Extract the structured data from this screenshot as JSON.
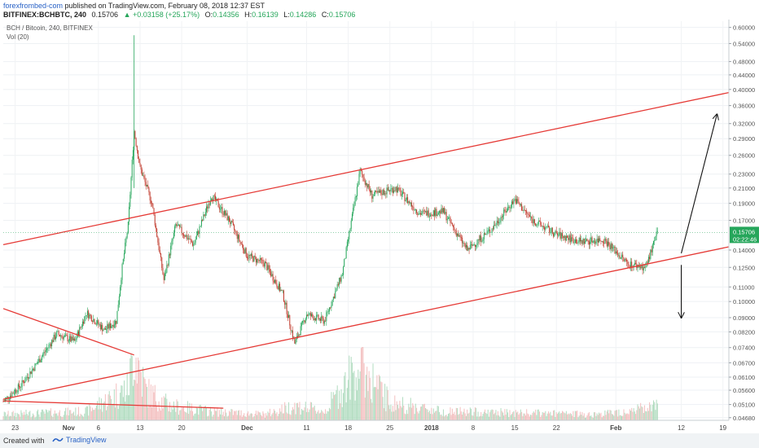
{
  "header": {
    "author": "forexfrombed-com",
    "published": "published on TradingView.com, February 08, 2018 12:37 EST",
    "symbol": "BITFINEX:BCHBTC, 240",
    "last": "0.15706",
    "change": "▲ +0.03158 (+25.17%)",
    "o_label": "O:",
    "o_value": "0.14356",
    "h_label": "H:",
    "h_value": "0.16139",
    "l_label": "L:",
    "l_value": "0.14286",
    "c_label": "C:",
    "c_value": "0.15706"
  },
  "chart_data": {
    "type": "candlestick",
    "legend": [
      "BCH / Bitcoin, 240, BITFINEX",
      "Vol (20)"
    ],
    "y_scale": "log",
    "ylim": [
      0.046,
      0.625
    ],
    "y_ticks": [
      "0.60000",
      "0.54000",
      "0.48000",
      "0.44000",
      "0.40000",
      "0.36000",
      "0.32000",
      "0.29000",
      "0.26000",
      "0.23000",
      "0.21000",
      "0.19000",
      "0.17000",
      "0.14000",
      "0.12500",
      "0.11000",
      "0.10000",
      "0.09000",
      "0.08200",
      "0.07400",
      "0.06700",
      "0.06100",
      "0.05600",
      "0.05100",
      "0.04680"
    ],
    "x_ticks": [
      "23",
      "Nov",
      "6",
      "13",
      "20",
      "Dec",
      "11",
      "18",
      "25",
      "2018",
      "8",
      "15",
      "22",
      "Feb",
      "12",
      "19"
    ],
    "current_price": "0.15706",
    "countdown": "02:22:46",
    "price_path": [
      [
        "Oct 21",
        0.052
      ],
      [
        "Oct 24",
        0.058
      ],
      [
        "Oct 27",
        0.068
      ],
      [
        "Oct 30",
        0.081
      ],
      [
        "Nov 2",
        0.077
      ],
      [
        "Nov 4",
        0.093
      ],
      [
        "Nov 7",
        0.083
      ],
      [
        "Nov 9",
        0.088
      ],
      [
        "Nov 10",
        0.125
      ],
      [
        "Nov 11",
        0.165
      ],
      [
        "Nov 12",
        0.305
      ],
      [
        "Nov 13",
        0.24
      ],
      [
        "Nov 15",
        0.19
      ],
      [
        "Nov 17",
        0.115
      ],
      [
        "Nov 19",
        0.165
      ],
      [
        "Nov 22",
        0.145
      ],
      [
        "Nov 25",
        0.2
      ],
      [
        "Nov 28",
        0.17
      ],
      [
        "Dec 1",
        0.135
      ],
      [
        "Dec 4",
        0.128
      ],
      [
        "Dec 7",
        0.105
      ],
      [
        "Dec 9",
        0.076
      ],
      [
        "Dec 11",
        0.092
      ],
      [
        "Dec 14",
        0.088
      ],
      [
        "Dec 17",
        0.12
      ],
      [
        "Dec 20",
        0.235
      ],
      [
        "Dec 22",
        0.2
      ],
      [
        "Dec 26",
        0.21
      ],
      [
        "Dec 30",
        0.178
      ],
      [
        "Jan 3",
        0.18
      ],
      [
        "Jan 7",
        0.14
      ],
      [
        "Jan 11",
        0.16
      ],
      [
        "Jan 15",
        0.195
      ],
      [
        "Jan 18",
        0.17
      ],
      [
        "Jan 22",
        0.155
      ],
      [
        "Jan 26",
        0.148
      ],
      [
        "Jan 30",
        0.15
      ],
      [
        "Feb 3",
        0.128
      ],
      [
        "Feb 6",
        0.125
      ],
      [
        "Feb 8",
        0.157
      ]
    ],
    "volume_path": [
      [
        "Oct 21",
        4
      ],
      [
        "Oct 28",
        5
      ],
      [
        "Nov 4",
        6
      ],
      [
        "Nov 11",
        22
      ],
      [
        "Nov 12",
        48
      ],
      [
        "Nov 14",
        20
      ],
      [
        "Nov 18",
        10
      ],
      [
        "Nov 25",
        6
      ],
      [
        "Dec 4",
        4
      ],
      [
        "Dec 9",
        10
      ],
      [
        "Dec 14",
        6
      ],
      [
        "Dec 20",
        38
      ],
      [
        "Dec 25",
        12
      ],
      [
        "Jan 3",
        6
      ],
      [
        "Jan 15",
        5
      ],
      [
        "Jan 29",
        4
      ],
      [
        "Feb 8",
        9
      ]
    ],
    "drawings": [
      {
        "type": "trendline",
        "color": "#e53935",
        "from": [
          "Oct 21",
          0.145
        ],
        "to": [
          "Feb 20",
          0.392
        ]
      },
      {
        "type": "trendline",
        "color": "#e53935",
        "from": [
          "Oct 21",
          0.0528
        ],
        "to": [
          "Feb 20",
          0.143
        ]
      },
      {
        "type": "trendline",
        "color": "#e53935",
        "from": [
          "Oct 21",
          0.0955
        ],
        "to": [
          "Nov 12",
          0.0705
        ]
      },
      {
        "type": "trendline",
        "color": "#e53935",
        "from": [
          "Oct 21",
          0.0522
        ],
        "to": [
          "Nov 27",
          0.0498
        ]
      },
      {
        "type": "arrow",
        "color": "#111111",
        "from": [
          "Feb 12",
          0.137
        ],
        "to": [
          "Feb 18",
          0.34
        ]
      },
      {
        "type": "arrow",
        "color": "#111111",
        "from": [
          "Feb 12",
          0.127
        ],
        "to": [
          "Feb 12",
          0.09
        ]
      }
    ],
    "colors": {
      "up": "#26a65b",
      "down": "#c0392b",
      "trend": "#e53935",
      "arrow": "#111111",
      "vol_up": "#a8d8b9",
      "vol_down": "#f2b8b8"
    }
  },
  "footer": {
    "created": "Created with",
    "brand": "TradingView"
  }
}
